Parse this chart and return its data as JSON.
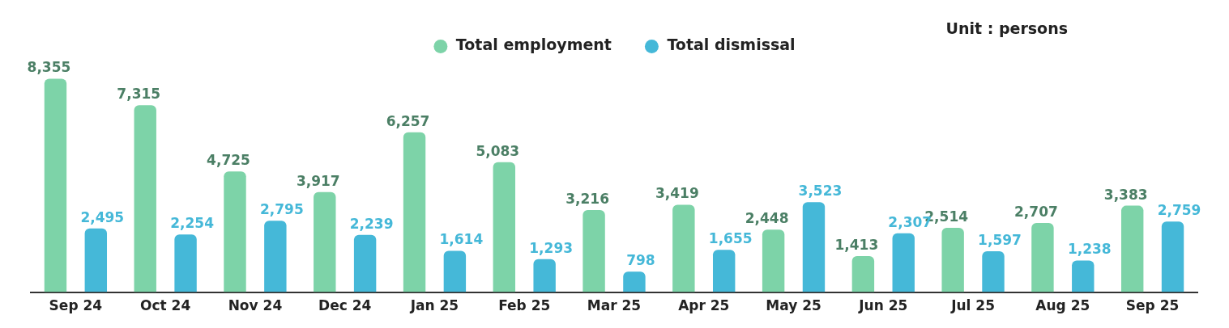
{
  "chart_data": {
    "type": "bar",
    "categories": [
      "Sep 24",
      "Oct 24",
      "Nov 24",
      "Dec 24",
      "Jan 25",
      "Feb 25",
      "Mar 25",
      "Apr 25",
      "May 25",
      "Jun 25",
      "Jul 25",
      "Aug 25",
      "Sep 25"
    ],
    "series": [
      {
        "name": "Total employment",
        "color": "#7dd3a8",
        "values": [
          8355,
          7315,
          4725,
          3917,
          6257,
          5083,
          3216,
          3419,
          2448,
          1413,
          2514,
          2707,
          3383
        ],
        "value_labels": [
          "8,355",
          "7,315",
          "4,725",
          "3,917",
          "6,257",
          "5,083",
          "3,216",
          "3,419",
          "2,448",
          "1,413",
          "2,514",
          "2,707",
          "3,383"
        ]
      },
      {
        "name": "Total dismissal",
        "color": "#45b8d8",
        "values": [
          2495,
          2254,
          2795,
          2239,
          1614,
          1293,
          798,
          1655,
          3523,
          2307,
          1597,
          1238,
          2759
        ],
        "value_labels": [
          "2,495",
          "2,254",
          "2,795",
          "2,239",
          "1,614",
          "1,293",
          "798",
          "1,655",
          "3,523",
          "2,307",
          "1,597",
          "1,238",
          "2,759"
        ]
      }
    ],
    "legend": "top",
    "grid": false,
    "tick_labels": "x",
    "annotations": [
      "Unit : persons"
    ]
  }
}
